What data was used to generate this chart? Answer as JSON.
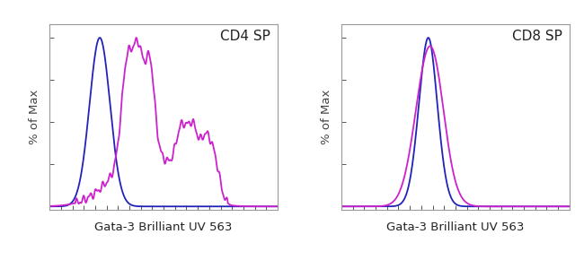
{
  "panel1_title": "CD4 SP",
  "panel2_title": "CD8 SP",
  "xlabel": "Gata-3 Brilliant UV 563",
  "ylabel": "% of Max",
  "blue_color": "#2222bb",
  "magenta_color": "#cc22cc",
  "background_color": "#ffffff",
  "xlim": [
    0,
    1
  ],
  "ylim": [
    -0.02,
    1.08
  ],
  "label_fontsize": 9.5,
  "title_fontsize": 11,
  "linewidth": 1.3,
  "spine_color": "#999999",
  "tick_color": "#555555"
}
